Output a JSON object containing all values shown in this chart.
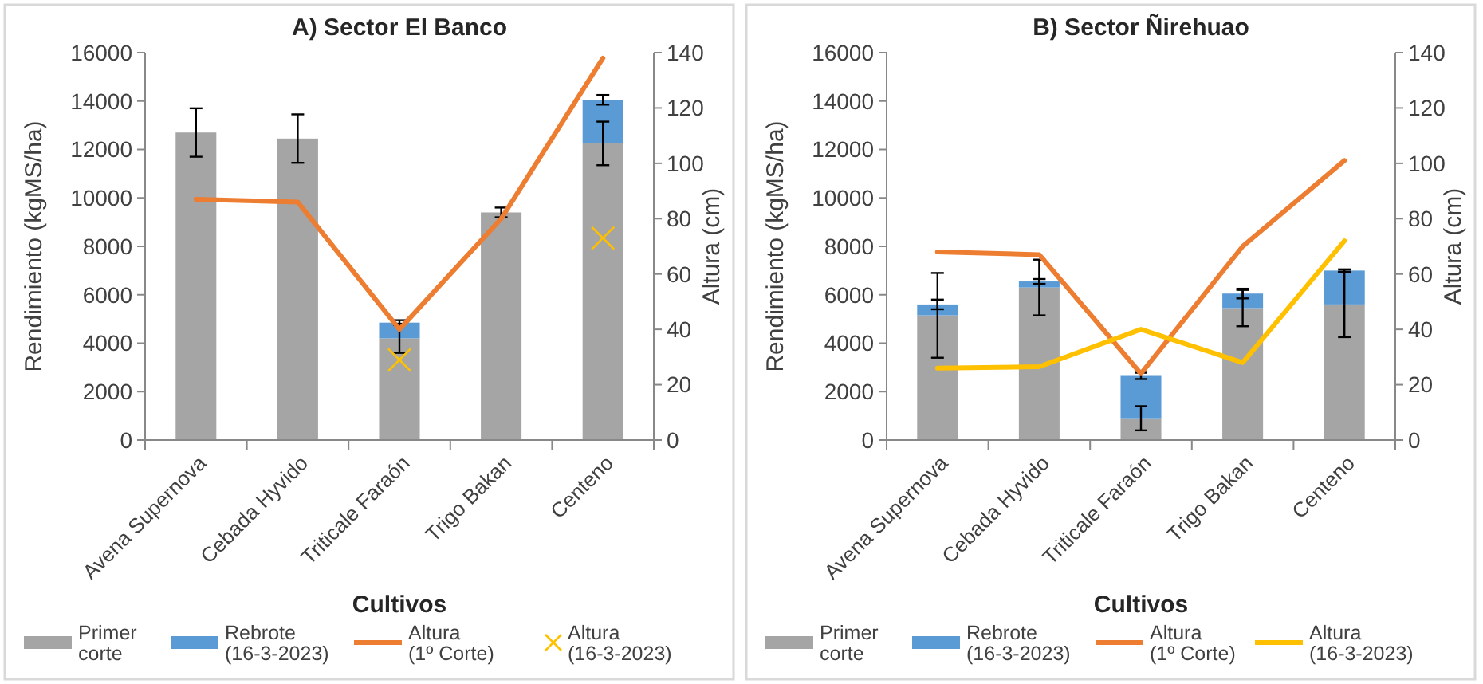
{
  "chart_data": [
    {
      "type": "bar",
      "title": "A) Sector El Banco",
      "xlabel": "Cultivos",
      "ylabel": "Rendimiento (kgMS/ha)",
      "y2label": "Altura (cm)",
      "categories": [
        "Avena Supernova",
        "Cebada Hyvido",
        "Triticale Faraón",
        "Trigo Bakan",
        "Centeno"
      ],
      "stacked": true,
      "legend": "bottom",
      "ylim": [
        0,
        16000
      ],
      "yticks": [
        0,
        2000,
        4000,
        6000,
        8000,
        10000,
        12000,
        14000,
        16000
      ],
      "y2lim": [
        0,
        140
      ],
      "y2ticks": [
        0,
        20,
        40,
        60,
        80,
        100,
        120,
        140
      ],
      "series": [
        {
          "name": "Primer corte",
          "color": "#a5a5a5",
          "values": [
            12700,
            12450,
            4200,
            9400,
            12250
          ],
          "errors": [
            1000,
            1000,
            600,
            200,
            900
          ]
        },
        {
          "name": "Rebrote (16-3-2023)",
          "color": "#5b9bd5",
          "values": [
            0,
            0,
            650,
            0,
            1800
          ],
          "errors": [
            null,
            null,
            100,
            null,
            200
          ]
        },
        {
          "name": "Altura (1º Corte)",
          "type": "line",
          "axis": "y2",
          "color": "#ed7d31",
          "values": [
            87,
            86,
            40,
            80,
            138
          ]
        },
        {
          "name": "Altura (16-3-2023)",
          "type": "scatter",
          "marker": "cross",
          "axis": "y2",
          "color": "#ffc000",
          "values": [
            null,
            null,
            29,
            null,
            73
          ]
        }
      ]
    },
    {
      "type": "bar",
      "title": "B) Sector Ñirehuao",
      "xlabel": "Cultivos",
      "ylabel": "Rendimiento (kgMS/ha)",
      "y2label": "Altura (cm)",
      "categories": [
        "Avena Supernova",
        "Cebada Hyvido",
        "Triticale Faraón",
        "Trigo Bakan",
        "Centeno"
      ],
      "stacked": true,
      "legend": "bottom",
      "ylim": [
        0,
        16000
      ],
      "yticks": [
        0,
        2000,
        4000,
        6000,
        8000,
        10000,
        12000,
        14000,
        16000
      ],
      "y2lim": [
        0,
        140
      ],
      "y2ticks": [
        0,
        20,
        40,
        60,
        80,
        100,
        120,
        140
      ],
      "series": [
        {
          "name": "Primer corte",
          "color": "#a5a5a5",
          "values": [
            5150,
            6300,
            900,
            5450,
            5600
          ],
          "errors": [
            1750,
            1150,
            500,
            750,
            1350
          ]
        },
        {
          "name": "Rebrote (16-3-2023)",
          "color": "#5b9bd5",
          "values": [
            450,
            250,
            1750,
            600,
            1400
          ],
          "errors": [
            200,
            100,
            130,
            200,
            50
          ]
        },
        {
          "name": "Altura (1º Corte)",
          "type": "line",
          "axis": "y2",
          "color": "#ed7d31",
          "values": [
            68,
            67,
            24,
            70,
            101
          ]
        },
        {
          "name": "Altura (16-3-2023)",
          "type": "line",
          "axis": "y2",
          "color": "#ffc000",
          "values": [
            26,
            26.5,
            40,
            28,
            72
          ]
        }
      ]
    }
  ]
}
